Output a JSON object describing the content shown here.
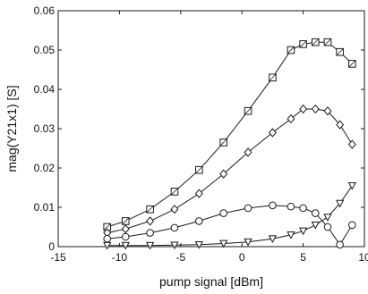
{
  "chart_data": {
    "type": "line",
    "title": "",
    "xlabel": "pump signal [dBm]",
    "ylabel": "mag(Y21x1) [S]",
    "xlim": [
      -15,
      10
    ],
    "ylim": [
      0,
      0.06
    ],
    "xticks": [
      -15,
      -10,
      -5,
      0,
      5,
      10
    ],
    "yticks": [
      0,
      0.01,
      0.02,
      0.03,
      0.04,
      0.05,
      0.06
    ],
    "xtick_labels": [
      "-15",
      "-10",
      "-5",
      "0",
      "5",
      "10"
    ],
    "ytick_labels": [
      "0",
      "0.01",
      "0.02",
      "0.03",
      "0.04",
      "0.05",
      "0.06"
    ],
    "grid": false,
    "series": [
      {
        "marker": "square",
        "x": [
          -11,
          -9.5,
          -7.5,
          -5.5,
          -3.5,
          -1.5,
          0.5,
          2.5,
          4,
          5,
          6,
          7,
          8,
          9
        ],
        "y": [
          0.005,
          0.0065,
          0.0095,
          0.014,
          0.0195,
          0.0265,
          0.0345,
          0.043,
          0.05,
          0.0515,
          0.052,
          0.052,
          0.0495,
          0.0465
        ]
      },
      {
        "marker": "diamond",
        "x": [
          -11,
          -9.5,
          -7.5,
          -5.5,
          -3.5,
          -1.5,
          0.5,
          2.5,
          4,
          5,
          6,
          7,
          8,
          9
        ],
        "y": [
          0.0035,
          0.0045,
          0.0065,
          0.0095,
          0.0135,
          0.0185,
          0.024,
          0.029,
          0.0325,
          0.035,
          0.035,
          0.0345,
          0.031,
          0.026
        ]
      },
      {
        "marker": "circle",
        "x": [
          -11,
          -9.5,
          -7.5,
          -5.5,
          -3.5,
          -1.5,
          0.5,
          2.5,
          4,
          5,
          6,
          7,
          8,
          9
        ],
        "y": [
          0.002,
          0.0025,
          0.0035,
          0.0048,
          0.0065,
          0.0085,
          0.0098,
          0.0105,
          0.0102,
          0.0098,
          0.0085,
          0.005,
          0.0005,
          0.0055
        ]
      },
      {
        "marker": "triangle-down",
        "x": [
          -11,
          -9.5,
          -7.5,
          -5.5,
          -3.5,
          -1.5,
          0.5,
          2.5,
          4,
          5,
          6,
          7,
          8,
          9
        ],
        "y": [
          0.0003,
          0.0003,
          0.0003,
          0.0004,
          0.0005,
          0.0008,
          0.0012,
          0.002,
          0.003,
          0.004,
          0.0055,
          0.0075,
          0.011,
          0.0155
        ]
      }
    ]
  }
}
